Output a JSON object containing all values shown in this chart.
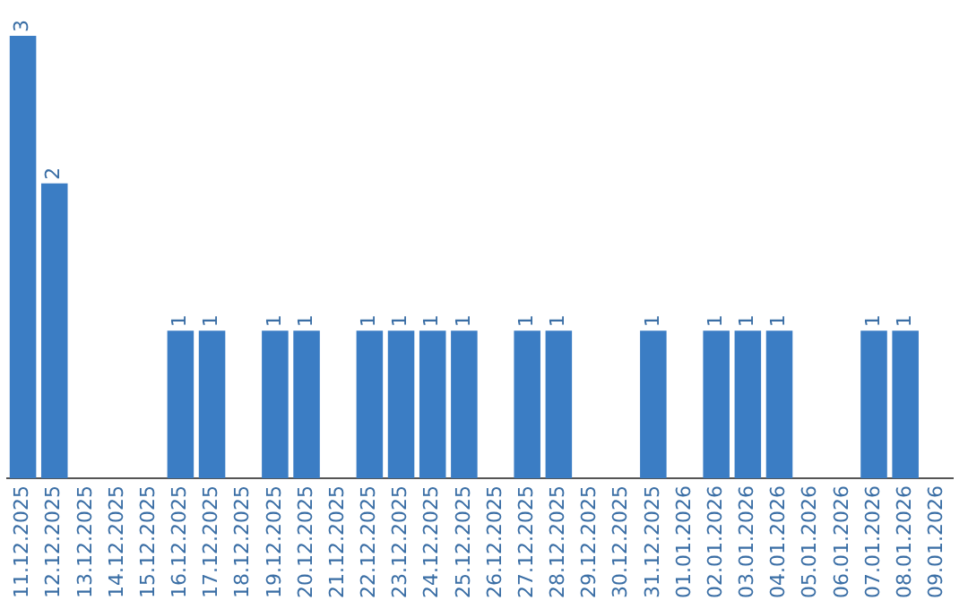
{
  "chart_data": {
    "type": "bar",
    "categories": [
      "11.12.2025",
      "12.12.2025",
      "13.12.2025",
      "14.12.2025",
      "15.12.2025",
      "16.12.2025",
      "17.12.2025",
      "18.12.2025",
      "19.12.2025",
      "20.12.2025",
      "21.12.2025",
      "22.12.2025",
      "23.12.2025",
      "24.12.2025",
      "25.12.2025",
      "26.12.2025",
      "27.12.2025",
      "28.12.2025",
      "29.12.2025",
      "30.12.2025",
      "31.12.2025",
      "01.01.2026",
      "02.01.2026",
      "03.01.2026",
      "04.01.2026",
      "05.01.2026",
      "06.01.2026",
      "07.01.2026",
      "08.01.2026",
      "09.01.2026"
    ],
    "values": [
      3,
      2,
      0,
      0,
      0,
      1,
      1,
      0,
      1,
      1,
      0,
      1,
      1,
      1,
      1,
      0,
      1,
      1,
      0,
      0,
      1,
      0,
      1,
      1,
      1,
      0,
      0,
      1,
      1,
      0
    ],
    "value_labels": [
      "3",
      "2",
      null,
      null,
      null,
      "1",
      "1",
      null,
      "1",
      "1",
      null,
      "1",
      "1",
      "1",
      "1",
      null,
      "1",
      "1",
      null,
      null,
      "1",
      null,
      "1",
      "1",
      "1",
      null,
      null,
      "1",
      "1",
      null
    ],
    "color": "#3b7dc4",
    "grid": false,
    "legend": false,
    "tick_labels": "x"
  }
}
